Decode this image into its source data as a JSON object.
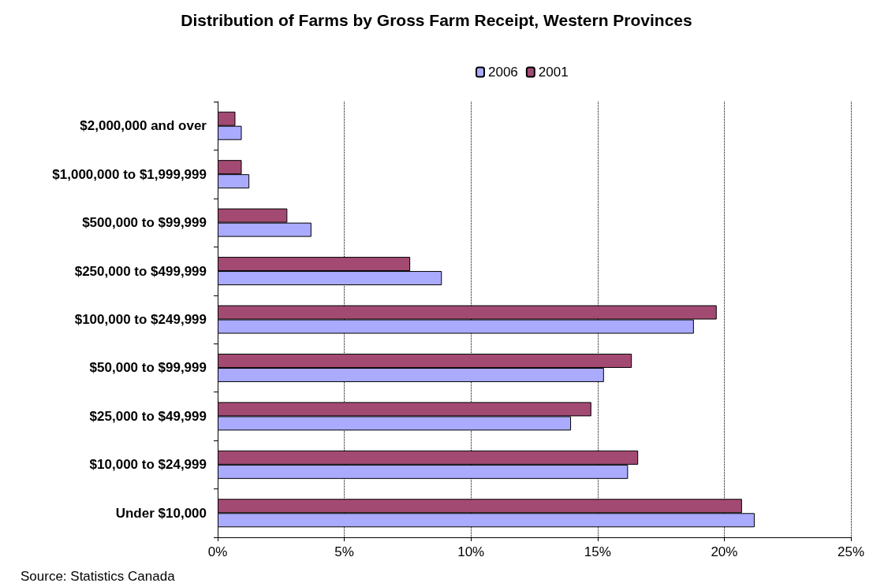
{
  "chart_data": {
    "type": "bar",
    "orientation": "horizontal",
    "title": "Distribution of Farms by Gross Farm Receipt, Western Provinces",
    "categories": [
      "$2,000,000 and over",
      "$1,000,000 to $1,999,999",
      "$500,000 to $99,999",
      "$250,000 to $499,999",
      "$100,000 to $249,999",
      "$50,000 to $99,999",
      "$25,000 to $49,999",
      "$10,000 to $24,999",
      "Under $10,000"
    ],
    "series": [
      {
        "name": "2001",
        "color": "#a34a72",
        "values": [
          0.7,
          0.95,
          2.75,
          7.6,
          19.7,
          16.35,
          14.75,
          16.6,
          20.7
        ]
      },
      {
        "name": "2006",
        "color": "#aaaaff",
        "values": [
          0.95,
          1.25,
          3.7,
          8.85,
          18.8,
          15.25,
          13.95,
          16.2,
          21.2
        ]
      }
    ],
    "xlim": [
      0,
      25
    ],
    "xticks": [
      {
        "value": 0,
        "label": "0%"
      },
      {
        "value": 5,
        "label": "5%"
      },
      {
        "value": 10,
        "label": "10%"
      },
      {
        "value": 15,
        "label": "15%"
      },
      {
        "value": 20,
        "label": "20%"
      },
      {
        "value": 25,
        "label": "25%"
      }
    ],
    "grid": "x",
    "legend": "top right",
    "annotations": [
      "Source: Statistics Canada"
    ]
  }
}
